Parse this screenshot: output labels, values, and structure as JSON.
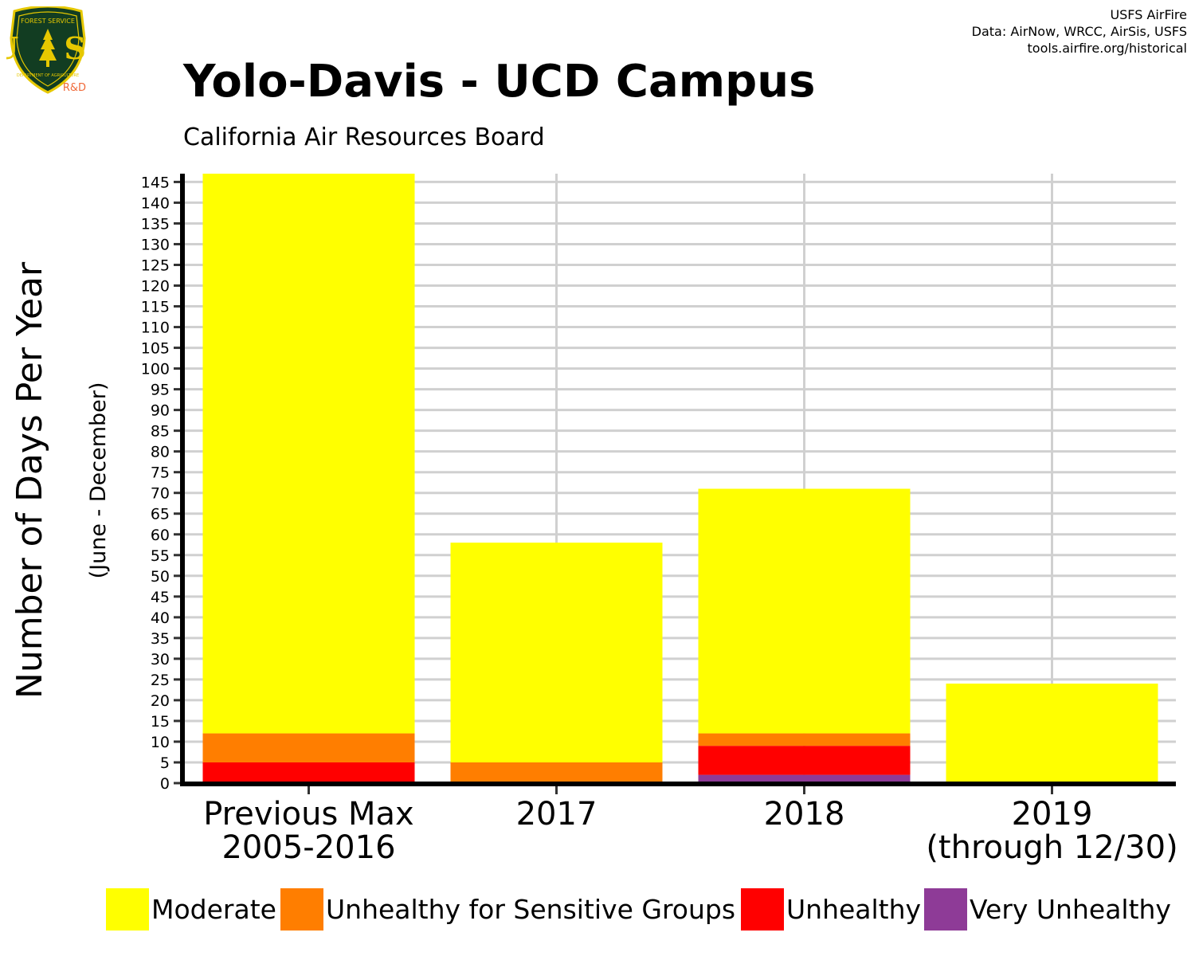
{
  "header": {
    "logo_text": {
      "top": "FOREST SERVICE",
      "mark": "U S",
      "bottom": "DEPARTMENT OF AGRICULTURE",
      "tag": "R&D"
    },
    "credits": [
      "USFS AirFire",
      "Data: AirNow, WRCC, AirSis, USFS",
      "tools.airfire.org/historical"
    ],
    "title": "Yolo-Davis - UCD Campus",
    "subtitle": "California Air Resources Board"
  },
  "chart_data": {
    "type": "bar",
    "stacked": true,
    "title": "Yolo-Davis - UCD Campus",
    "subtitle": "California Air Resources Board",
    "ylabel": "Number of Days Per Year",
    "ylabel_sub": "(June - December)",
    "xlabel": "",
    "ylim": [
      0,
      147
    ],
    "yticks": [
      0,
      5,
      10,
      15,
      20,
      25,
      30,
      35,
      40,
      45,
      50,
      55,
      60,
      65,
      70,
      75,
      80,
      85,
      90,
      95,
      100,
      105,
      110,
      115,
      120,
      125,
      130,
      135,
      140,
      145
    ],
    "grid": true,
    "legend_position": "bottom",
    "categories": [
      [
        "Previous Max",
        "2005-2016"
      ],
      [
        "2017"
      ],
      [
        "2018"
      ],
      [
        "2019",
        "(through 12/30)"
      ]
    ],
    "series": [
      {
        "name": "Very Unhealthy",
        "color": "#8E3B97",
        "values": [
          0,
          0,
          2,
          0
        ]
      },
      {
        "name": "Unhealthy",
        "color": "#FF0000",
        "values": [
          5,
          0,
          7,
          0
        ]
      },
      {
        "name": "Unhealthy for Sensitive Groups",
        "color": "#FF7E00",
        "values": [
          7,
          5,
          3,
          0
        ]
      },
      {
        "name": "Moderate",
        "color": "#FFFF00",
        "values": [
          135,
          53,
          59,
          24
        ]
      }
    ],
    "legend_order": [
      "Moderate",
      "Unhealthy for Sensitive Groups",
      "Unhealthy",
      "Very Unhealthy"
    ]
  }
}
